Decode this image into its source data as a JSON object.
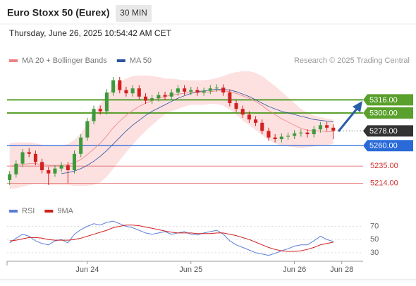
{
  "header": {
    "title": "Euro Stoxx 50 (Eurex)",
    "timeframe": "30 MIN",
    "datetime": "Thursday, June 26, 2025 10:54:42 AM CET"
  },
  "chart_data": [
    {
      "type": "candlestick",
      "credit": "Research © 2025 Trading Central",
      "up_color": "#3c9a3c",
      "down_color": "#d32020",
      "xlim": [
        -0.4,
        54.6
      ],
      "ylim": [
        5192,
        5382
      ],
      "open": [
        5218,
        5225,
        5238,
        5252,
        5250,
        5240,
        5230,
        5226,
        5232,
        5236,
        5230,
        5250,
        5270,
        5290,
        5305,
        5302,
        5325,
        5340,
        5328,
        5324,
        5330,
        5320,
        5315,
        5318,
        5322,
        5320,
        5325,
        5330,
        5326,
        5328,
        5325,
        5327,
        5330,
        5331,
        5325,
        5312,
        5305,
        5298,
        5292,
        5288,
        5278,
        5270,
        5268,
        5271,
        5272,
        5275,
        5276,
        5274,
        5280,
        5285,
        5282
      ],
      "high": [
        5229,
        5242,
        5256,
        5257,
        5254,
        5244,
        5234,
        5236,
        5240,
        5240,
        5254,
        5274,
        5294,
        5309,
        5309,
        5329,
        5344,
        5344,
        5332,
        5334,
        5334,
        5324,
        5322,
        5326,
        5326,
        5329,
        5334,
        5334,
        5332,
        5332,
        5331,
        5334,
        5335,
        5335,
        5329,
        5316,
        5309,
        5302,
        5296,
        5292,
        5282,
        5274,
        5275,
        5276,
        5279,
        5280,
        5280,
        5284,
        5289,
        5289,
        5286
      ],
      "low": [
        5212,
        5221,
        5234,
        5246,
        5236,
        5226,
        5212,
        5222,
        5228,
        5214,
        5226,
        5246,
        5266,
        5286,
        5298,
        5298,
        5321,
        5324,
        5320,
        5320,
        5316,
        5311,
        5311,
        5314,
        5316,
        5316,
        5321,
        5322,
        5322,
        5321,
        5321,
        5323,
        5326,
        5321,
        5308,
        5301,
        5294,
        5288,
        5284,
        5274,
        5266,
        5264,
        5264,
        5267,
        5268,
        5271,
        5270,
        5270,
        5276,
        5278,
        5268
      ],
      "close": [
        5225,
        5238,
        5252,
        5250,
        5240,
        5230,
        5226,
        5232,
        5236,
        5230,
        5250,
        5270,
        5290,
        5305,
        5302,
        5325,
        5340,
        5328,
        5324,
        5330,
        5320,
        5315,
        5318,
        5322,
        5320,
        5325,
        5330,
        5326,
        5328,
        5325,
        5327,
        5330,
        5331,
        5325,
        5312,
        5305,
        5298,
        5292,
        5288,
        5278,
        5270,
        5268,
        5271,
        5272,
        5275,
        5276,
        5274,
        5280,
        5285,
        5282,
        5278
      ],
      "series": [
        {
          "name": "MA 20 + Bollinger Bands",
          "color": "#f08080",
          "band_color": "#fdd8d8",
          "values": [
            5235,
            5236,
            5237,
            5238,
            5238,
            5237,
            5236,
            5236,
            5236,
            5237,
            5239,
            5243,
            5249,
            5256,
            5263,
            5272,
            5282,
            5290,
            5297,
            5303,
            5308,
            5312,
            5315,
            5318,
            5320,
            5322,
            5323,
            5324,
            5325,
            5325,
            5325,
            5326,
            5327,
            5327,
            5326,
            5324,
            5321,
            5318,
            5314,
            5309,
            5303,
            5298,
            5293,
            5289,
            5285,
            5281,
            5279,
            5278,
            5278,
            5277,
            5277
          ],
          "upper": [
            5263,
            5264,
            5264,
            5264,
            5263,
            5261,
            5260,
            5260,
            5260,
            5262,
            5267,
            5275,
            5287,
            5300,
            5311,
            5322,
            5332,
            5338,
            5342,
            5345,
            5346,
            5346,
            5345,
            5344,
            5342,
            5342,
            5341,
            5340,
            5340,
            5340,
            5340,
            5341,
            5343,
            5345,
            5348,
            5350,
            5351,
            5351,
            5349,
            5345,
            5339,
            5333,
            5326,
            5319,
            5312,
            5305,
            5300,
            5297,
            5295,
            5293,
            5292
          ],
          "lower": [
            5207,
            5208,
            5210,
            5212,
            5213,
            5213,
            5212,
            5212,
            5212,
            5212,
            5211,
            5211,
            5211,
            5212,
            5215,
            5222,
            5232,
            5242,
            5252,
            5261,
            5270,
            5278,
            5285,
            5292,
            5298,
            5302,
            5305,
            5308,
            5310,
            5310,
            5310,
            5311,
            5311,
            5309,
            5304,
            5298,
            5291,
            5285,
            5279,
            5273,
            5267,
            5263,
            5260,
            5259,
            5258,
            5257,
            5258,
            5259,
            5261,
            5261,
            5262
          ]
        },
        {
          "name": "MA 50",
          "color": "#2a55a0",
          "values": [
            null,
            null,
            null,
            null,
            null,
            null,
            null,
            null,
            5226,
            5227,
            5229,
            5232,
            5236,
            5241,
            5247,
            5254,
            5262,
            5270,
            5278,
            5285,
            5291,
            5297,
            5302,
            5306,
            5310,
            5314,
            5318,
            5321,
            5324,
            5326,
            5327,
            5328,
            5329,
            5329,
            5328,
            5326,
            5323,
            5320,
            5316,
            5312,
            5308,
            5305,
            5302,
            5300,
            5298,
            5296,
            5294,
            5292,
            5291,
            5290,
            5289
          ]
        }
      ],
      "levels": [
        {
          "value": 5316,
          "label": "5316.00",
          "color": "#5aa02c",
          "style": "box"
        },
        {
          "value": 5300,
          "label": "5300.00",
          "color": "#5aa02c",
          "style": "box"
        },
        {
          "value": 5278,
          "label": "5278.00",
          "color": "#333333",
          "style": "dotted"
        },
        {
          "value": 5260,
          "label": "5260.00",
          "color": "#2a6ad8",
          "style": "box"
        },
        {
          "value": 5235,
          "label": "5235.00",
          "color": "#e06b6b",
          "style": "text"
        },
        {
          "value": 5214,
          "label": "5214.00",
          "color": "#e06b6b",
          "style": "text"
        }
      ]
    },
    {
      "type": "line",
      "xlim": [
        -0.4,
        54.6
      ],
      "ylim": [
        17,
        92
      ],
      "yticks": [
        70,
        50,
        30
      ],
      "grid": true,
      "xticks": [
        {
          "value": 12,
          "label": "Jun 24"
        },
        {
          "value": 28,
          "label": "Jun 25"
        },
        {
          "value": 44,
          "label": "Jun 26"
        },
        {
          "value": 51.3,
          "label": "Jun 28"
        }
      ],
      "series": [
        {
          "name": "RSI",
          "color": "#5b7fd6",
          "values": [
            45,
            52,
            58,
            55,
            48,
            44,
            42,
            48,
            50,
            45,
            58,
            65,
            70,
            74,
            72,
            76,
            78,
            74,
            70,
            68,
            64,
            60,
            58,
            60,
            62,
            58,
            60,
            62,
            58,
            57,
            60,
            62,
            64,
            58,
            48,
            42,
            38,
            34,
            30,
            28,
            26,
            29,
            33,
            36,
            40,
            42,
            42,
            48,
            55,
            50,
            47
          ]
        },
        {
          "name": "9MA",
          "color": "#d02020",
          "values": [
            48,
            49,
            51,
            53,
            53,
            52,
            50,
            49,
            49,
            49,
            50,
            52,
            55,
            58,
            61,
            64,
            68,
            70,
            72,
            72,
            71,
            69,
            67,
            65,
            63,
            61,
            60,
            60,
            60,
            59,
            59,
            59,
            60,
            60,
            58,
            56,
            53,
            50,
            46,
            42,
            38,
            35,
            33,
            32,
            32,
            33,
            35,
            38,
            42,
            44,
            46
          ]
        }
      ]
    }
  ]
}
